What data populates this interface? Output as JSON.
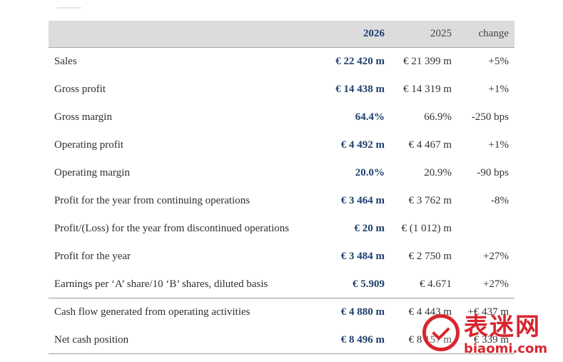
{
  "table": {
    "header": {
      "col2026": "2026",
      "col2025": "2025",
      "change": "change"
    },
    "rows": [
      {
        "label": "Sales",
        "v2026": "€ 22 420 m",
        "v2025": "€ 21 399 m",
        "change": "+5%"
      },
      {
        "label": "Gross profit",
        "v2026": "€ 14 438 m",
        "v2025": "€ 14 319 m",
        "change": "+1%"
      },
      {
        "label": "Gross margin",
        "v2026": "64.4%",
        "v2025": "66.9%",
        "change": "-250 bps"
      },
      {
        "label": "Operating profit",
        "v2026": "€ 4 492 m",
        "v2025": "€ 4 467 m",
        "change": "+1%"
      },
      {
        "label": "Operating margin",
        "v2026": "20.0%",
        "v2025": "20.9%",
        "change": "-90 bps"
      },
      {
        "label": "Profit for the year from continuing operations",
        "v2026": "€ 3 464 m",
        "v2025": "€ 3 762 m",
        "change": "-8%"
      },
      {
        "label": "Profit/(Loss) for the year from discontinued operations",
        "v2026": "€ 20 m",
        "v2025": "€ (1 012) m",
        "change": ""
      },
      {
        "label": "Profit for the year",
        "v2026": "€ 3 484 m",
        "v2025": "€ 2 750 m",
        "change": "+27%"
      },
      {
        "label": "Earnings per ‘A’ share/10 ‘B’ shares, diluted basis",
        "v2026": "€ 5.909",
        "v2025": "€ 4.671",
        "change": "+27%"
      },
      {
        "label": "Cash flow generated from operating activities",
        "v2026": "€ 4 880 m",
        "v2025": "€ 4 443 m",
        "change": "+€ 437 m"
      },
      {
        "label": "Net cash position",
        "v2026": "€ 8 496 m",
        "v2025": "€ 8 157 m",
        "change": "€ 339 m"
      }
    ]
  },
  "watermark": {
    "chinese": "表迷网",
    "url": "biaomi.com",
    "color": "#d8262f"
  }
}
